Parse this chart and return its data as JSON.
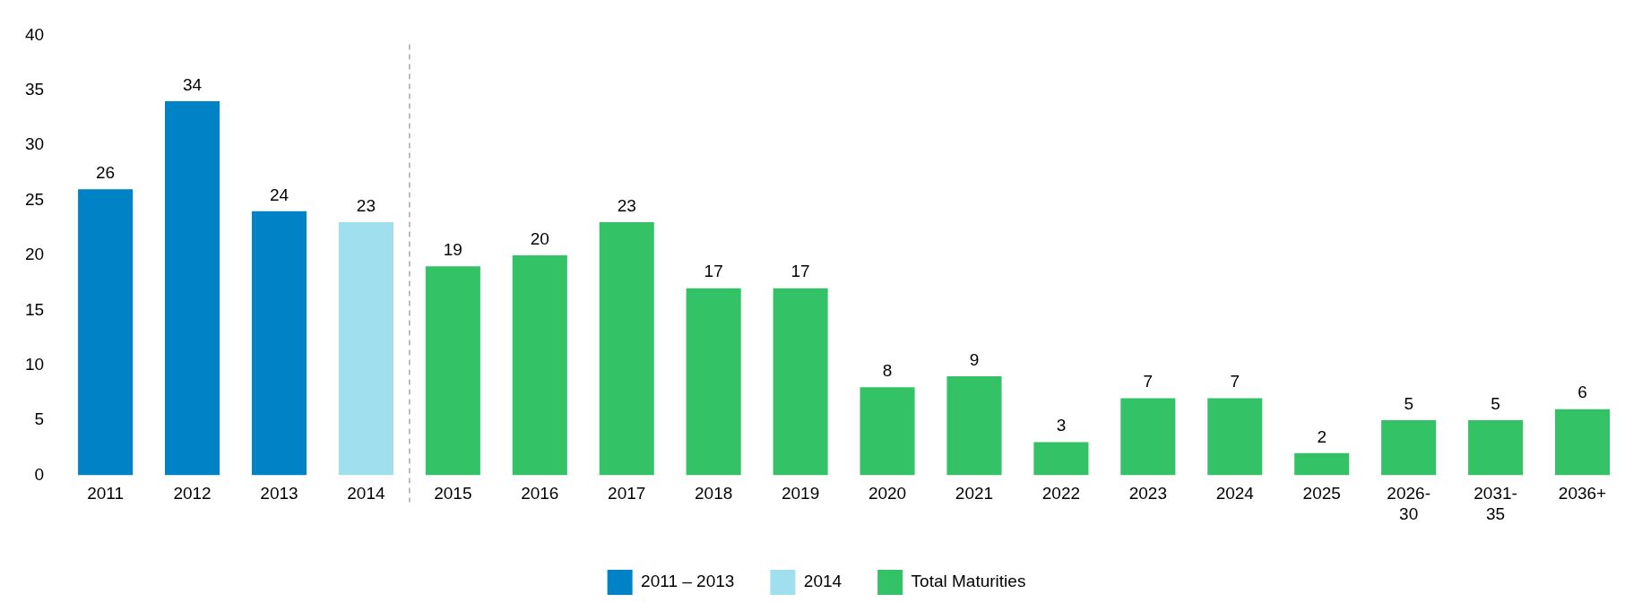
{
  "chart_data": {
    "type": "bar",
    "categories": [
      "2011",
      "2012",
      "2013",
      "2014",
      "2015",
      "2016",
      "2017",
      "2018",
      "2019",
      "2020",
      "2021",
      "2022",
      "2023",
      "2024",
      "2025",
      "2026-30",
      "2031-35",
      "2036+"
    ],
    "series": [
      {
        "name": "2011 – 2013",
        "color": "#0083c6",
        "values": [
          26,
          34,
          24,
          null,
          null,
          null,
          null,
          null,
          null,
          null,
          null,
          null,
          null,
          null,
          null,
          null,
          null,
          null
        ]
      },
      {
        "name": "2014",
        "color": "#a0dfed",
        "values": [
          null,
          null,
          null,
          23,
          null,
          null,
          null,
          null,
          null,
          null,
          null,
          null,
          null,
          null,
          null,
          null,
          null,
          null
        ]
      },
      {
        "name": "Total Maturities",
        "color": "#33c366",
        "values": [
          null,
          null,
          null,
          null,
          19,
          20,
          23,
          17,
          17,
          8,
          9,
          3,
          7,
          7,
          2,
          5,
          5,
          6
        ]
      }
    ],
    "ylim": [
      0,
      40
    ],
    "yticks": [
      0,
      5,
      10,
      15,
      20,
      25,
      30,
      35,
      40
    ],
    "grid": false,
    "legend": "bottom",
    "data_labels": true
  }
}
